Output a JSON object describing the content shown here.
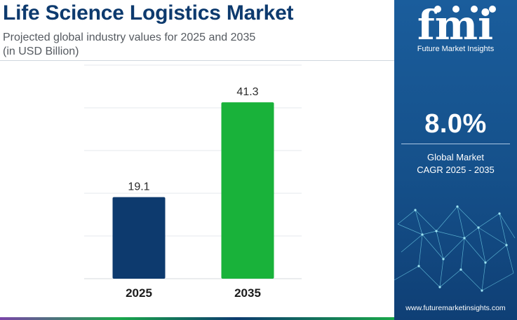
{
  "header": {
    "title": "Life Science Logistics Market",
    "subtitle_line1": "Projected global industry values for 2025 and 2035",
    "subtitle_line2": "(in USD Billion)"
  },
  "chart_data": {
    "type": "bar",
    "categories": [
      "2025",
      "2035"
    ],
    "values": [
      19.1,
      41.3
    ],
    "value_labels": [
      "19.1",
      "41.3"
    ],
    "colors": [
      "#0d3a6e",
      "#19b23a"
    ],
    "ylim": [
      0,
      50
    ],
    "grid": true,
    "xlabel": "",
    "ylabel": ""
  },
  "sidebar": {
    "brand_name": "Future Market Insights",
    "logo_text": "fmi",
    "cagr_value": "8.0%",
    "cagr_line1": "Global Market",
    "cagr_line2": "CAGR 2025 - 2035",
    "url": "www.futuremarketinsights.com"
  },
  "colors": {
    "accent_dark": "#0d3a6e",
    "accent_green": "#19b23a",
    "panel_blue": "#15508a"
  }
}
